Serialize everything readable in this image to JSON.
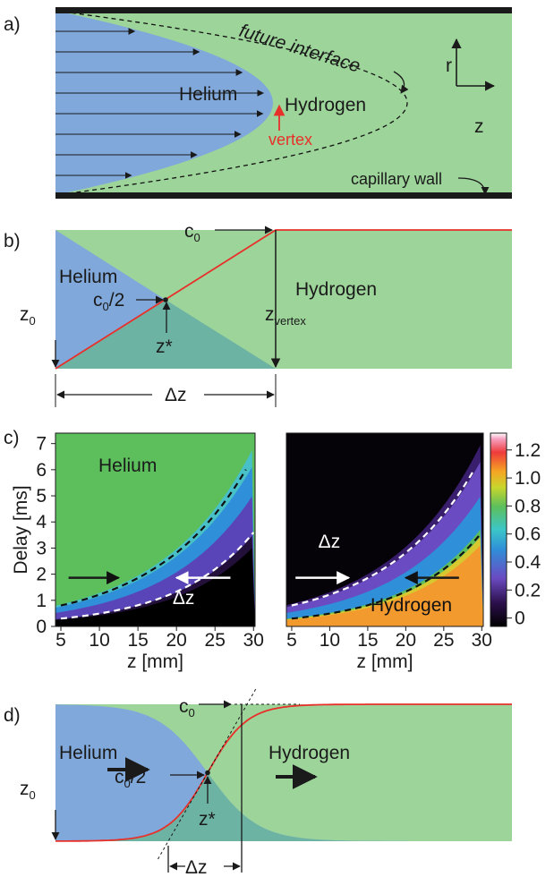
{
  "panel_labels": [
    "a)",
    "b)",
    "c)",
    "d)"
  ],
  "panel_a": {
    "future_interface": "future interface",
    "helium": "Helium",
    "hydrogen": "Hydrogen",
    "vertex": "vertex",
    "r": "r",
    "z": "z",
    "capillary_wall": "capillary wall"
  },
  "panel_b": {
    "c0": {
      "base": "c",
      "sub": "0"
    },
    "helium": "Helium",
    "c0_half": {
      "base": "c",
      "sub": "0",
      "tail": "/2"
    },
    "hydrogen": "Hydrogen",
    "z0": {
      "base": "z",
      "sub": "0"
    },
    "z_star": "z*",
    "z_vertex": {
      "base": "z",
      "sub": "vertex"
    },
    "delta_z": "Δz"
  },
  "panel_c": {
    "y_label": "Delay [ms]",
    "x_label": "z [mm]",
    "xlim": [
      4.3,
      30.2
    ],
    "ylim": [
      0,
      7.4
    ],
    "xticks": [
      5,
      10,
      15,
      20,
      25,
      30
    ],
    "yticks": [
      0,
      1,
      2,
      3,
      4,
      5,
      6,
      7
    ],
    "colorbar": {
      "lim": [
        -0.06,
        1.32
      ],
      "ticks": [
        0,
        0.2,
        0.4,
        0.6,
        0.8,
        {
          "value": 1,
          "label": "1.0"
        },
        1.2
      ]
    },
    "left": {
      "label": "Helium",
      "delta_z": "Δz"
    },
    "right": {
      "label": "Hydrogen",
      "delta_z": "Δz"
    }
  },
  "panel_d": {
    "c0": {
      "base": "c",
      "sub": "0"
    },
    "helium": "Helium",
    "c0_half": {
      "base": "c",
      "sub": "0",
      "tail": "/2"
    },
    "hydrogen": "Hydrogen",
    "z0": {
      "base": "z",
      "sub": "0"
    },
    "z_star": "z*",
    "delta_z": "Δz"
  }
}
